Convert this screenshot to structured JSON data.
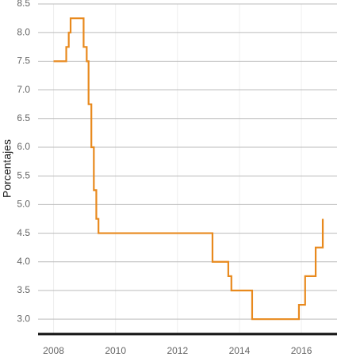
{
  "chart_data": {
    "type": "step-line",
    "y_label": "Porcentajes",
    "color": "#e8891d",
    "x": [
      2008.0,
      2008.41,
      2008.49,
      2008.55,
      2008.97,
      2009.07,
      2009.13,
      2009.22,
      2009.3,
      2009.38,
      2009.45,
      2013.13,
      2013.64,
      2013.74,
      2014.41,
      2015.92,
      2016.12,
      2016.46,
      2016.69
    ],
    "values": [
      7.5,
      7.75,
      8.0,
      8.25,
      7.75,
      7.5,
      6.75,
      6.0,
      5.25,
      4.75,
      4.5,
      4.0,
      3.75,
      3.5,
      3.0,
      3.25,
      3.75,
      4.25,
      4.75
    ],
    "xlim": [
      2007.5,
      2017.15
    ],
    "ylim": [
      2.74,
      8.5
    ],
    "xticks": [
      2008,
      2010,
      2012,
      2014,
      2016
    ],
    "yticks": [
      {
        "value": 3,
        "label": "3.0"
      },
      {
        "value": 3.5,
        "label": "3.5"
      },
      {
        "value": 4,
        "label": "4.0"
      },
      {
        "value": 4.5,
        "label": "4.5"
      },
      {
        "value": 5,
        "label": "5.0"
      },
      {
        "value": 5.5,
        "label": "5.5"
      },
      {
        "value": 6,
        "label": "6.0"
      },
      {
        "value": 6.5,
        "label": "6.5"
      },
      {
        "value": 7,
        "label": "7.0"
      },
      {
        "value": 7.5,
        "label": "7.5"
      },
      {
        "value": 8,
        "label": "8.0"
      },
      {
        "value": 8.5,
        "label": "8.5"
      }
    ],
    "grid": true
  }
}
